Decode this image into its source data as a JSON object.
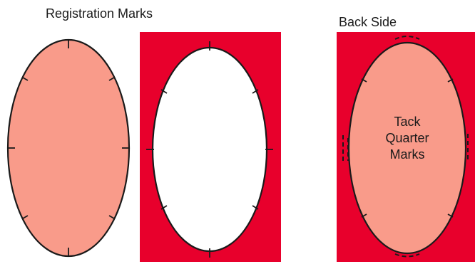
{
  "titles": {
    "registration_marks": "Registration Marks",
    "back_side": "Back Side"
  },
  "labels": {
    "tack_quarter_marks": [
      "Tack",
      "Quarter",
      "Marks"
    ]
  },
  "colors": {
    "oval_fill": "#F99B8A",
    "frame_red": "#E8002C",
    "stroke": "#1a1a1a",
    "opening": "#ffffff"
  },
  "panels": [
    {
      "name": "oval-piece",
      "description_shown": false
    },
    {
      "name": "frame-front",
      "description_shown": false
    },
    {
      "name": "frame-back",
      "description_shown": false
    }
  ]
}
